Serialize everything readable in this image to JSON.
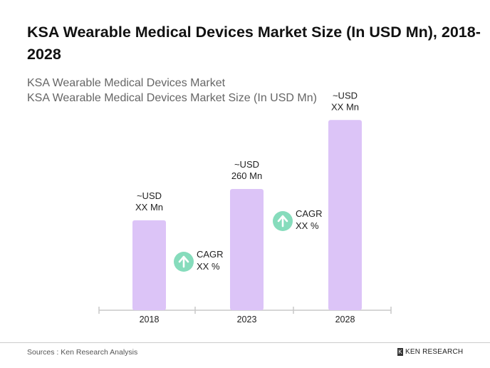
{
  "title": "KSA Wearable Medical Devices Market Size (In USD Mn), 2018-2028",
  "subtitle1": "KSA Wearable Medical Devices Market",
  "subtitle2": "KSA Wearable Medical Devices Market Size (In USD Mn)",
  "footer": {
    "source": "Sources : Ken Research Analysis",
    "logo": "KEN RESEARCH"
  },
  "colors": {
    "bar": "#dcc4f7",
    "cagr_circle": "#86dcbc",
    "axis": "#c8c8c8"
  },
  "chart_data": {
    "type": "bar",
    "categories": [
      "2018",
      "2023",
      "2028"
    ],
    "values": [
      193,
      260,
      408
    ],
    "bar_labels": [
      [
        "~USD",
        "XX Mn"
      ],
      [
        "~USD",
        "260 Mn"
      ],
      [
        "~USD",
        "XX Mn"
      ]
    ],
    "annotations": [
      {
        "between": [
          "2018",
          "2023"
        ],
        "icon": "arrow-up-icon",
        "lines": [
          "CAGR",
          "XX %"
        ]
      },
      {
        "between": [
          "2023",
          "2028"
        ],
        "icon": "arrow-up-icon",
        "lines": [
          "CAGR",
          "XX %"
        ]
      }
    ],
    "grid": false,
    "ylim": [
      0,
      410
    ]
  }
}
